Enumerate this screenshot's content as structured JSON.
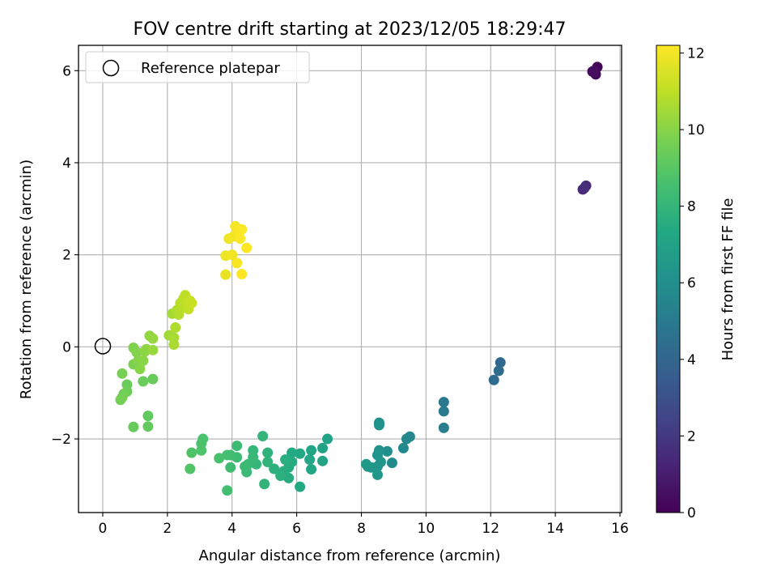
{
  "chart_data": {
    "type": "scatter",
    "title": "FOV centre drift starting at 2023/12/05 18:29:47",
    "xlabel": "Angular distance from reference (arcmin)",
    "ylabel": "Rotation from reference (arcmin)",
    "xlim": [
      -0.75,
      16.05
    ],
    "ylim": [
      -3.6,
      6.55
    ],
    "xticks": [
      0,
      2,
      4,
      6,
      8,
      10,
      12,
      14,
      16
    ],
    "yticks": [
      -2,
      0,
      2,
      4,
      6
    ],
    "xtick_labels": [
      "0",
      "2",
      "4",
      "6",
      "8",
      "10",
      "12",
      "14",
      "16"
    ],
    "ytick_labels": [
      "−2",
      "0",
      "2",
      "4",
      "6"
    ],
    "grid": true,
    "colormap": "viridis",
    "colorbar": {
      "label": "Hours from first FF file",
      "range": [
        0,
        12.2
      ],
      "ticks": [
        0,
        2,
        4,
        6,
        8,
        10,
        12
      ],
      "tick_labels": [
        "0",
        "2",
        "4",
        "6",
        "8",
        "10",
        "12"
      ]
    },
    "legend": {
      "position": "top-left",
      "entries": [
        {
          "label": "Reference platepar",
          "marker": "open-circle"
        }
      ]
    },
    "reference_point": {
      "x": 0,
      "y": 0
    },
    "points": [
      {
        "x": 15.3,
        "y": 6.08,
        "c": 0.1
      },
      {
        "x": 15.15,
        "y": 5.98,
        "c": 0.2
      },
      {
        "x": 15.25,
        "y": 5.92,
        "c": 0.3
      },
      {
        "x": 15.2,
        "y": 6.0,
        "c": 0.4
      },
      {
        "x": 14.85,
        "y": 3.42,
        "c": 1.4
      },
      {
        "x": 14.95,
        "y": 3.5,
        "c": 1.5
      },
      {
        "x": 14.9,
        "y": 3.45,
        "c": 1.6
      },
      {
        "x": 12.3,
        "y": -0.34,
        "c": 4.1
      },
      {
        "x": 12.25,
        "y": -0.52,
        "c": 4.2
      },
      {
        "x": 12.1,
        "y": -0.72,
        "c": 4.3
      },
      {
        "x": 10.55,
        "y": -1.2,
        "c": 4.9
      },
      {
        "x": 10.55,
        "y": -1.4,
        "c": 5.0
      },
      {
        "x": 10.55,
        "y": -1.76,
        "c": 5.1
      },
      {
        "x": 9.5,
        "y": -1.95,
        "c": 5.6
      },
      {
        "x": 9.4,
        "y": -2.0,
        "c": 5.65
      },
      {
        "x": 9.3,
        "y": -2.2,
        "c": 5.7
      },
      {
        "x": 8.95,
        "y": -2.52,
        "c": 5.8
      },
      {
        "x": 8.8,
        "y": -2.27,
        "c": 6.0
      },
      {
        "x": 8.55,
        "y": -1.65,
        "c": 6.1
      },
      {
        "x": 8.55,
        "y": -1.7,
        "c": 6.15
      },
      {
        "x": 8.55,
        "y": -2.25,
        "c": 6.2
      },
      {
        "x": 8.5,
        "y": -2.35,
        "c": 6.25
      },
      {
        "x": 8.5,
        "y": -2.6,
        "c": 6.3
      },
      {
        "x": 8.5,
        "y": -2.78,
        "c": 6.35
      },
      {
        "x": 8.6,
        "y": -2.5,
        "c": 6.4
      },
      {
        "x": 8.3,
        "y": -2.62,
        "c": 6.45
      },
      {
        "x": 8.15,
        "y": -2.55,
        "c": 6.5
      },
      {
        "x": 8.2,
        "y": -2.6,
        "c": 6.55
      },
      {
        "x": 6.95,
        "y": -2.0,
        "c": 7.0
      },
      {
        "x": 6.8,
        "y": -2.2,
        "c": 7.05
      },
      {
        "x": 6.8,
        "y": -2.48,
        "c": 7.1
      },
      {
        "x": 6.45,
        "y": -2.25,
        "c": 7.15
      },
      {
        "x": 6.4,
        "y": -2.45,
        "c": 7.2
      },
      {
        "x": 6.45,
        "y": -2.66,
        "c": 7.25
      },
      {
        "x": 6.1,
        "y": -2.32,
        "c": 7.3
      },
      {
        "x": 6.1,
        "y": -3.04,
        "c": 7.35
      },
      {
        "x": 5.85,
        "y": -2.3,
        "c": 7.4
      },
      {
        "x": 5.85,
        "y": -2.5,
        "c": 7.45
      },
      {
        "x": 5.75,
        "y": -2.62,
        "c": 7.5
      },
      {
        "x": 5.75,
        "y": -2.85,
        "c": 7.55
      },
      {
        "x": 5.65,
        "y": -2.45,
        "c": 7.6
      },
      {
        "x": 5.6,
        "y": -2.7,
        "c": 7.65
      },
      {
        "x": 5.5,
        "y": -2.8,
        "c": 7.7
      },
      {
        "x": 5.3,
        "y": -2.65,
        "c": 7.75
      },
      {
        "x": 5.1,
        "y": -2.3,
        "c": 7.8
      },
      {
        "x": 5.1,
        "y": -2.5,
        "c": 7.85
      },
      {
        "x": 5.0,
        "y": -2.98,
        "c": 7.9
      },
      {
        "x": 4.95,
        "y": -1.94,
        "c": 7.95
      },
      {
        "x": 4.75,
        "y": -2.55,
        "c": 8.0
      },
      {
        "x": 4.65,
        "y": -2.25,
        "c": 8.05
      },
      {
        "x": 4.65,
        "y": -2.4,
        "c": 8.1
      },
      {
        "x": 4.5,
        "y": -2.55,
        "c": 8.15
      },
      {
        "x": 4.45,
        "y": -2.72,
        "c": 8.2
      },
      {
        "x": 4.4,
        "y": -2.6,
        "c": 8.25
      },
      {
        "x": 4.15,
        "y": -2.15,
        "c": 8.3
      },
      {
        "x": 4.15,
        "y": -2.4,
        "c": 8.35
      },
      {
        "x": 3.95,
        "y": -2.62,
        "c": 8.4
      },
      {
        "x": 3.95,
        "y": -2.35,
        "c": 8.45
      },
      {
        "x": 3.85,
        "y": -3.12,
        "c": 8.5
      },
      {
        "x": 3.85,
        "y": -2.35,
        "c": 8.55
      },
      {
        "x": 3.6,
        "y": -2.42,
        "c": 8.6
      },
      {
        "x": 3.1,
        "y": -2.0,
        "c": 8.65
      },
      {
        "x": 3.05,
        "y": -2.1,
        "c": 8.7
      },
      {
        "x": 3.05,
        "y": -2.25,
        "c": 8.75
      },
      {
        "x": 2.75,
        "y": -2.3,
        "c": 8.8
      },
      {
        "x": 2.7,
        "y": -2.65,
        "c": 8.85
      },
      {
        "x": 1.4,
        "y": -1.5,
        "c": 9.2
      },
      {
        "x": 1.4,
        "y": -1.73,
        "c": 9.25
      },
      {
        "x": 0.95,
        "y": -1.74,
        "c": 9.3
      },
      {
        "x": 1.55,
        "y": -0.7,
        "c": 9.35
      },
      {
        "x": 1.25,
        "y": -0.75,
        "c": 9.4
      },
      {
        "x": 0.75,
        "y": -0.82,
        "c": 9.45
      },
      {
        "x": 0.75,
        "y": -0.97,
        "c": 9.5
      },
      {
        "x": 0.65,
        "y": -1.02,
        "c": 9.55
      },
      {
        "x": 0.6,
        "y": -1.1,
        "c": 9.6
      },
      {
        "x": 0.55,
        "y": -1.15,
        "c": 9.65
      },
      {
        "x": 0.6,
        "y": -0.58,
        "c": 9.7
      },
      {
        "x": 0.95,
        "y": -0.38,
        "c": 9.8
      },
      {
        "x": 0.95,
        "y": -0.02,
        "c": 9.85
      },
      {
        "x": 1.05,
        "y": -0.12,
        "c": 9.9
      },
      {
        "x": 1.1,
        "y": -0.3,
        "c": 9.95
      },
      {
        "x": 1.15,
        "y": -0.48,
        "c": 10.0
      },
      {
        "x": 1.25,
        "y": -0.3,
        "c": 10.05
      },
      {
        "x": 1.3,
        "y": -0.1,
        "c": 10.1
      },
      {
        "x": 1.35,
        "y": -0.05,
        "c": 10.15
      },
      {
        "x": 1.45,
        "y": 0.24,
        "c": 10.2
      },
      {
        "x": 1.55,
        "y": 0.18,
        "c": 10.25
      },
      {
        "x": 1.55,
        "y": -0.07,
        "c": 10.3
      },
      {
        "x": 2.05,
        "y": 0.25,
        "c": 10.5
      },
      {
        "x": 2.15,
        "y": 0.72,
        "c": 10.55
      },
      {
        "x": 2.2,
        "y": 0.2,
        "c": 10.6
      },
      {
        "x": 2.2,
        "y": 0.05,
        "c": 10.65
      },
      {
        "x": 2.25,
        "y": 0.42,
        "c": 10.7
      },
      {
        "x": 2.3,
        "y": 0.8,
        "c": 10.75
      },
      {
        "x": 2.35,
        "y": 0.7,
        "c": 10.8
      },
      {
        "x": 2.4,
        "y": 0.95,
        "c": 10.85
      },
      {
        "x": 2.45,
        "y": 0.85,
        "c": 10.9
      },
      {
        "x": 2.5,
        "y": 1.05,
        "c": 10.95
      },
      {
        "x": 2.55,
        "y": 1.12,
        "c": 11.0
      },
      {
        "x": 2.6,
        "y": 0.9,
        "c": 11.05
      },
      {
        "x": 2.65,
        "y": 0.82,
        "c": 11.1
      },
      {
        "x": 2.7,
        "y": 1.0,
        "c": 11.15
      },
      {
        "x": 2.75,
        "y": 0.95,
        "c": 11.2
      },
      {
        "x": 3.8,
        "y": 1.57,
        "c": 11.8
      },
      {
        "x": 3.8,
        "y": 1.98,
        "c": 11.85
      },
      {
        "x": 3.9,
        "y": 2.35,
        "c": 11.9
      },
      {
        "x": 4.0,
        "y": 2.0,
        "c": 11.95
      },
      {
        "x": 4.05,
        "y": 2.4,
        "c": 12.0
      },
      {
        "x": 4.1,
        "y": 2.62,
        "c": 12.05
      },
      {
        "x": 4.15,
        "y": 1.82,
        "c": 12.1
      },
      {
        "x": 4.2,
        "y": 2.5,
        "c": 12.1
      },
      {
        "x": 4.25,
        "y": 2.35,
        "c": 12.15
      },
      {
        "x": 4.3,
        "y": 2.55,
        "c": 12.15
      },
      {
        "x": 4.3,
        "y": 1.58,
        "c": 12.2
      },
      {
        "x": 4.45,
        "y": 2.15,
        "c": 12.2
      }
    ]
  }
}
